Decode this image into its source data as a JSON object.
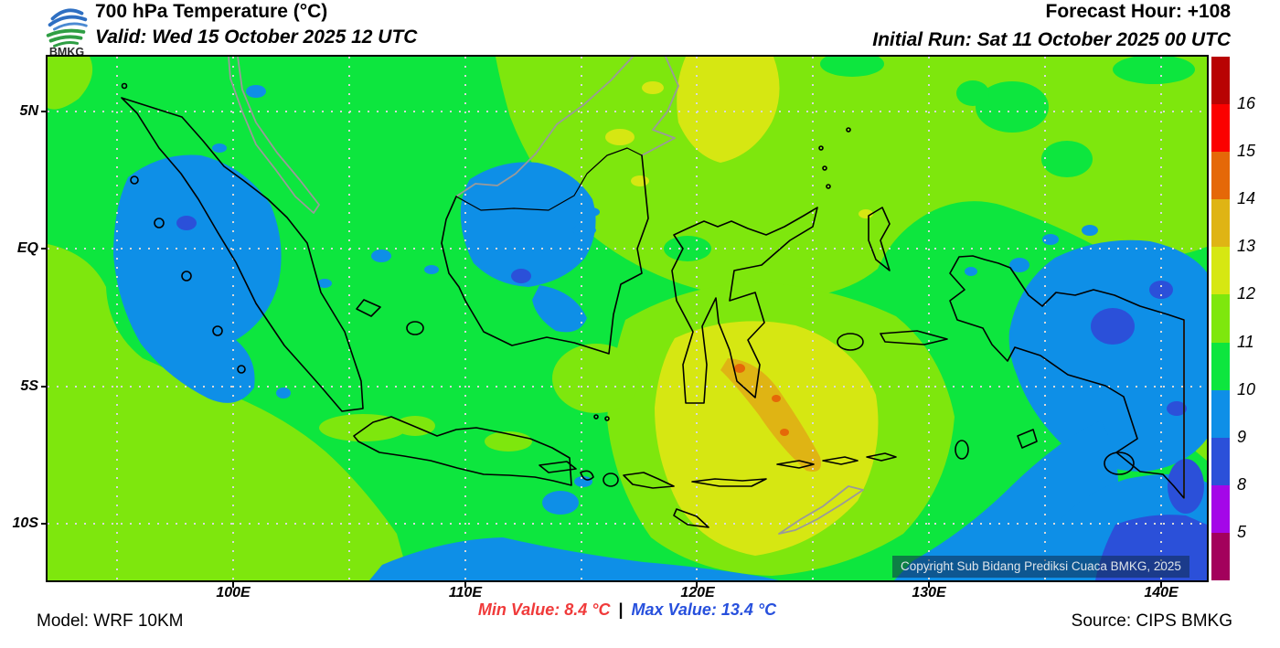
{
  "header": {
    "logo_text": "BMKG",
    "title": "700 hPa Temperature (°C)",
    "valid_line": "Valid: Wed 15 October 2025 12 UTC",
    "forecast_hour": "Forecast Hour: +108",
    "initial_run": "Initial Run: Sat 11 October 2025 00 UTC"
  },
  "map": {
    "lat_labels": [
      "5N",
      "EQ",
      "5S",
      "10S"
    ],
    "lon_labels": [
      "100E",
      "110E",
      "120E",
      "130E",
      "140E"
    ],
    "copyright": "Copyright Sub Bidang Prediksi Cuaca BMKG, 2025"
  },
  "colorbar": {
    "tick_labels": [
      "16",
      "15",
      "14",
      "13",
      "12",
      "11",
      "10",
      "9",
      "8",
      "5"
    ],
    "segment_colors_top_to_bottom": [
      "#b80303",
      "#fb0100",
      "#e56808",
      "#dfb414",
      "#d6e712",
      "#7ee70d",
      "#0de63e",
      "#0e8fe7",
      "#2b50d9",
      "#a407e8",
      "#a3015c"
    ]
  },
  "field_palette": {
    "green_10_11": "#0de63e",
    "yellowgreen_11_12": "#7ee70d",
    "yellow_12_13": "#d6e712",
    "gold_13_14": "#dfb414",
    "orange_14_15": "#e56808",
    "lightblue_9_10": "#0e8fe7",
    "royalblue_8_9": "#2b50d9"
  },
  "footer": {
    "model": "Model: WRF 10KM",
    "min_value": "Min Value: 8.4 °C",
    "separator": "|",
    "max_value": "Max Value: 13.4 °C",
    "source": "Source: CIPS BMKG",
    "min_color": "#f03a3a",
    "max_color": "#2750dd"
  }
}
